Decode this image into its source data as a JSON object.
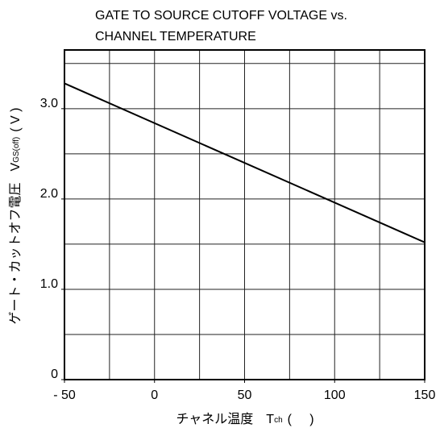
{
  "chart_data": {
    "type": "line",
    "title": [
      "GATE TO SOURCE CUTOFF VOLTAGE vs.",
      "CHANNEL TEMPERATURE"
    ],
    "ylabel": {
      "text": "ゲート・カットオフ電圧",
      "var": "V",
      "sub": "GS(off)",
      "unit": "( V )"
    },
    "xlabel": {
      "text": "チャネル温度",
      "var": "T",
      "sub": "ch",
      "unit": "(     )"
    },
    "x": [
      -50,
      150
    ],
    "series": [
      {
        "name": "VGS(off)",
        "color": "#000000",
        "values": [
          3.28,
          1.52
        ]
      }
    ],
    "xlim": [
      -50,
      150
    ],
    "ylim": [
      0,
      3.65
    ],
    "xticks": [
      {
        "value": -50,
        "label": "- 50"
      },
      0,
      50,
      100,
      150
    ],
    "yticks": [
      0,
      {
        "value": 1,
        "label": "1.0"
      },
      {
        "value": 2,
        "label": "2.0"
      },
      {
        "value": 3,
        "label": "3.0"
      }
    ],
    "xgrid": [
      -25,
      0,
      25,
      50,
      75,
      100,
      125
    ],
    "ygrid": [
      0.5,
      1,
      1.5,
      2,
      2.5,
      3,
      3.5
    ],
    "grid": true
  }
}
